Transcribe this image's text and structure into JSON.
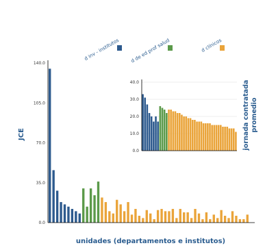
{
  "colors": {
    "inv": "#2d5a8e",
    "ed": "#5b9a4a",
    "clin": "#eaa43a",
    "axis": "#000000",
    "grid": "#dddddd",
    "title": "#2a5c8f"
  },
  "legend": [
    {
      "label": "d inv - institutos",
      "color_key": "inv"
    },
    {
      "label": "d de ed prof salud",
      "color_key": "ed"
    },
    {
      "label": "d clínicos",
      "color_key": "clin"
    }
  ],
  "chart_data": [
    {
      "type": "bar",
      "ylabel": "JCE",
      "xlabel": "unidades (departamentos e institutos)",
      "ylim": [
        0,
        140
      ],
      "yticks": [
        "0.0",
        "35.0",
        "70.0",
        "105.0",
        "140.0"
      ],
      "ytick_values": [
        0,
        35,
        70,
        105,
        140
      ],
      "grid": false,
      "series": [
        {
          "name": "d inv - institutos",
          "color_key": "inv",
          "values": [
            135,
            46,
            28,
            18,
            16,
            14,
            12,
            10,
            8
          ]
        },
        {
          "name": "d de ed prof salud",
          "color_key": "ed",
          "values": [
            30,
            14,
            30,
            24,
            36
          ]
        },
        {
          "name": "d clínicos",
          "color_key": "clin",
          "values": [
            22,
            18,
            10,
            8,
            20,
            16,
            10,
            18,
            7,
            12,
            6,
            4,
            11,
            8,
            3,
            11,
            12,
            10,
            10,
            12,
            4,
            12,
            9,
            9,
            4,
            12,
            8,
            3,
            9,
            3,
            7,
            4,
            11,
            6,
            4,
            10,
            6,
            3,
            3,
            7
          ]
        }
      ]
    },
    {
      "type": "bar",
      "ylabel": "jornada contratada promedio",
      "xlabel": "",
      "ylim": [
        0,
        40
      ],
      "yticks": [
        "0.0",
        "10.0",
        "20.0",
        "30.0",
        "40.0"
      ],
      "ytick_values": [
        0,
        10,
        20,
        30,
        40
      ],
      "grid": true,
      "series": [
        {
          "name": "d inv - institutos",
          "color_key": "inv",
          "values": [
            33,
            31,
            27,
            22,
            20,
            17,
            20,
            17
          ]
        },
        {
          "name": "d de ed prof salud",
          "color_key": "ed",
          "values": [
            26,
            25,
            24,
            22
          ]
        },
        {
          "name": "d clínicos",
          "color_key": "clin",
          "values": [
            24,
            24,
            23,
            23,
            22,
            22,
            21,
            20,
            20,
            19,
            19,
            18,
            18,
            17,
            17,
            17,
            16,
            16,
            16,
            16,
            15,
            15,
            15,
            15,
            15,
            14,
            14,
            14,
            13,
            13,
            13,
            11
          ]
        }
      ]
    }
  ]
}
